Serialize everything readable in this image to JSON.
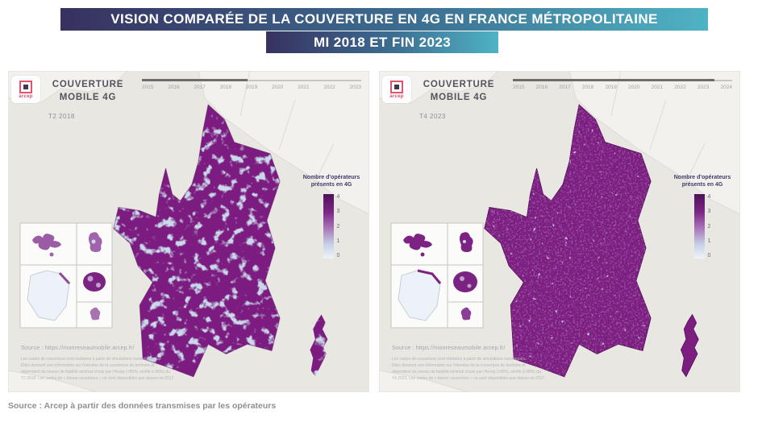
{
  "banner": {
    "line1": "VISION COMPARÉE DE LA COUVERTURE EN 4G EN FRANCE MÉTROPOLITAINE",
    "line2": "MI 2018 ET FIN 2023"
  },
  "footer": {
    "source": "Source : Arcep à partir des données transmises par les opérateurs"
  },
  "colors": {
    "banner_start": "#37315f",
    "banner_end": "#4fb3c4",
    "coverage_high": "#7b1e80",
    "coverage_low": "#c9d9ea",
    "panel_background": "#e9e7e2"
  },
  "maps": [
    {
      "logo_text": "arcep",
      "app_title_line1": "COUVERTURE",
      "app_title_line2": "MOBILE 4G",
      "period": "T2 2018",
      "timeline": {
        "years": [
          "2015",
          "2016",
          "2017",
          "2018",
          "2019",
          "2020",
          "2021",
          "2022",
          "2023"
        ],
        "active_year": "2018"
      },
      "legend": {
        "title_line1": "Nombre d'opérateurs",
        "title_line2": "présents en 4G",
        "ticks": [
          "4",
          "3",
          "2",
          "1",
          "0"
        ]
      },
      "source_link": "Source : https://monreseaumobile.arcep.fr/",
      "disclaimer": [
        "Les cartes de couverture sont réalisées à partir de simulations numériques.",
        "Elles donnent une information sur l'étendue de la couverture du territoire et",
        "dépendent du niveau de fiabilité minimal choisi par l'Arcep (>95%, vérifié à 98%) du",
        "T2 2018. Les cartes de « bonne couverture » ne sont disponibles que depuis mi-2017."
      ]
    },
    {
      "logo_text": "arcep",
      "app_title_line1": "COUVERTURE",
      "app_title_line2": "MOBILE 4G",
      "period": "T4 2023",
      "timeline": {
        "years": [
          "2015",
          "2016",
          "2017",
          "2018",
          "2019",
          "2020",
          "2021",
          "2022",
          "2023",
          "2024"
        ],
        "active_year": "2023"
      },
      "legend": {
        "title_line1": "Nombre d'opérateurs",
        "title_line2": "présents en 4G",
        "ticks": [
          "4",
          "3",
          "2",
          "1",
          "0"
        ]
      },
      "source_link": "Source : https://monreseaumobile.arcep.fr/",
      "disclaimer": [
        "Les cartes de couverture sont réalisées à partir de simulations numériques.",
        "Elles donnent une information sur l'étendue de la couverture du territoire et",
        "dépendent du niveau de fiabilité minimal choisi par l'Arcep (>95%, vérifié à 98%) du",
        "T4 2023. Les cartes de « bonne couverture » ne sont disponibles que depuis mi-2017."
      ]
    }
  ]
}
